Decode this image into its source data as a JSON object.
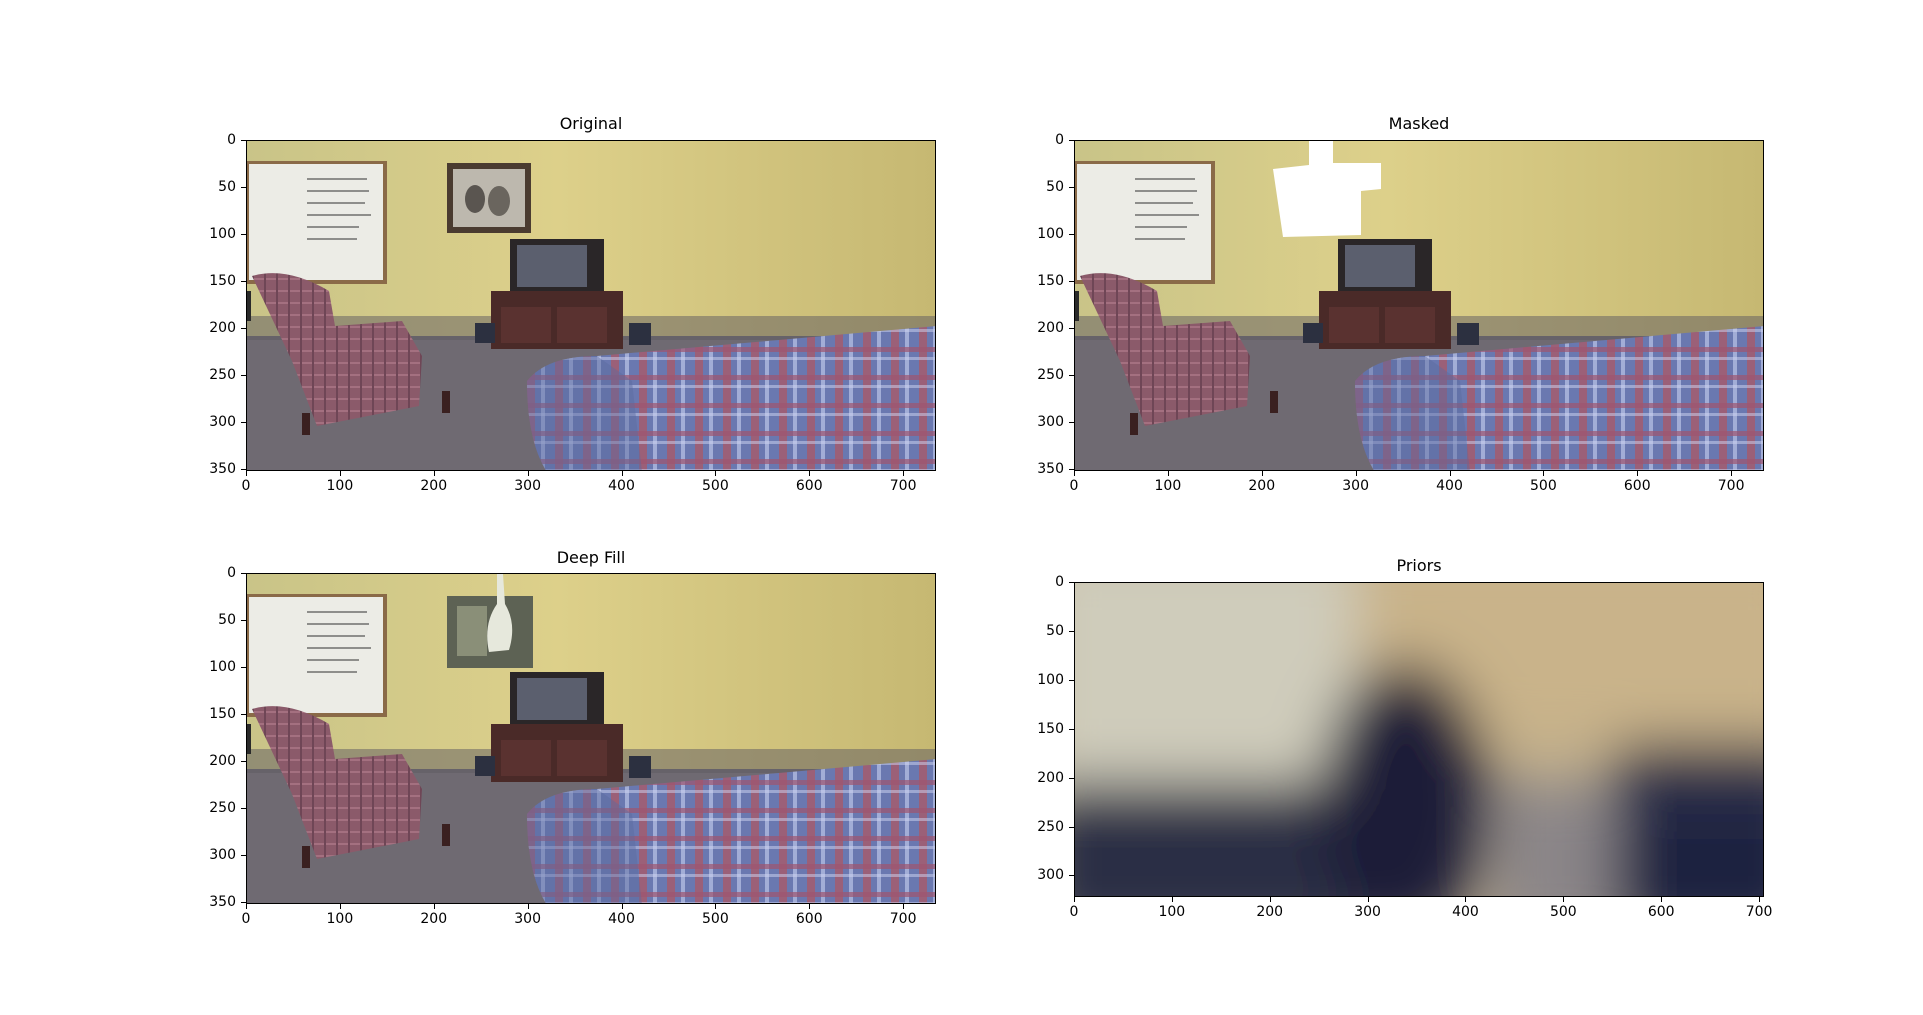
{
  "figure": {
    "panels": [
      {
        "key": "original",
        "title": "Original",
        "xticks": [
          "0",
          "100",
          "200",
          "300",
          "400",
          "500",
          "600",
          "700"
        ],
        "yticks": [
          "0",
          "50",
          "100",
          "150",
          "200",
          "250",
          "300",
          "350"
        ]
      },
      {
        "key": "masked",
        "title": "Masked",
        "xticks": [
          "0",
          "100",
          "200",
          "300",
          "400",
          "500",
          "600",
          "700"
        ],
        "yticks": [
          "0",
          "50",
          "100",
          "150",
          "200",
          "250",
          "300",
          "350"
        ]
      },
      {
        "key": "deepfill",
        "title": "Deep Fill",
        "xticks": [
          "0",
          "100",
          "200",
          "300",
          "400",
          "500",
          "600",
          "700"
        ],
        "yticks": [
          "0",
          "50",
          "100",
          "150",
          "200",
          "250",
          "300",
          "350"
        ]
      },
      {
        "key": "priors",
        "title": "Priors",
        "xticks": [
          "0",
          "100",
          "200",
          "300",
          "400",
          "500",
          "600",
          "700"
        ],
        "yticks": [
          "0",
          "50",
          "100",
          "150",
          "200",
          "250",
          "300"
        ]
      }
    ]
  },
  "image_ranges": {
    "original": {
      "x": [
        0,
        735
      ],
      "y": [
        0,
        352
      ]
    },
    "masked": {
      "x": [
        0,
        735
      ],
      "y": [
        0,
        352
      ]
    },
    "deepfill": {
      "x": [
        0,
        735
      ],
      "y": [
        0,
        352
      ]
    },
    "priors": {
      "x": [
        0,
        705
      ],
      "y": [
        0,
        322
      ]
    }
  },
  "colors": {
    "wall": "#d8cf8a",
    "wall_dark": "#a9a268",
    "floor": "#6f6a72",
    "chair": "#8b5a6a",
    "sofa_blue": "#5a6fa8",
    "sofa_red": "#a85a6a",
    "tv_stand": "#4a2a28",
    "whiteboard": "#e8e8e2",
    "mask_white": "#ffffff",
    "prior_light": "#c9c5b2",
    "prior_tan": "#c7b490",
    "prior_dark": "#1c2138"
  }
}
